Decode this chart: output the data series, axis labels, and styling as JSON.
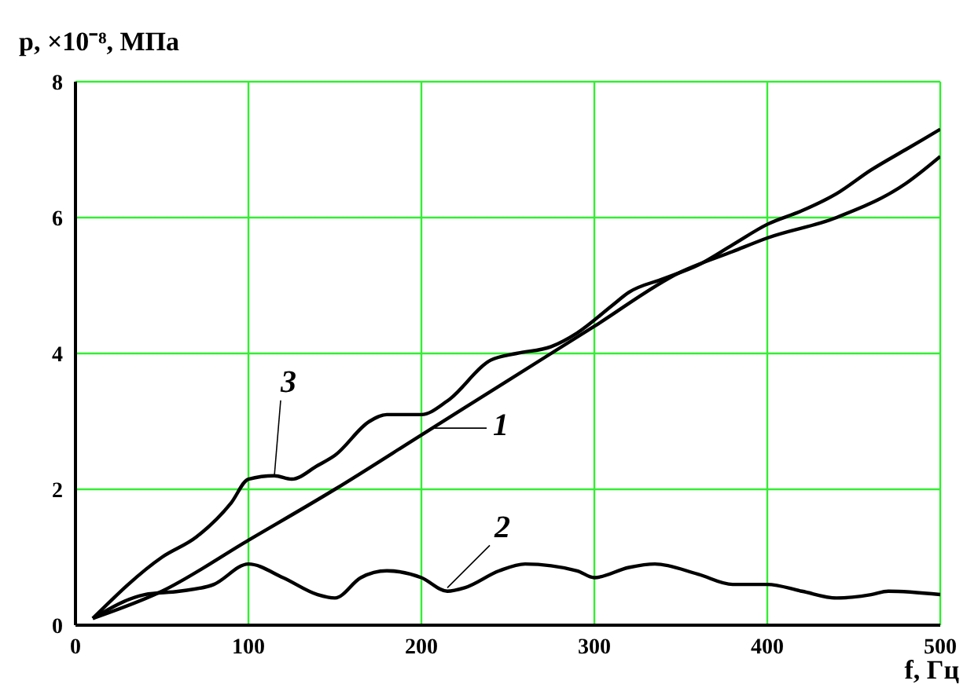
{
  "chart_data": {
    "type": "line",
    "xlabel": "f, Гц",
    "ylabel": "p, ×10⁻⁸, МПа",
    "xlim": [
      0,
      500
    ],
    "ylim": [
      0,
      8
    ],
    "xticks": [
      0,
      100,
      200,
      300,
      400,
      500
    ],
    "yticks": [
      0,
      2,
      4,
      6,
      8
    ],
    "grid": true,
    "legend": false,
    "marker": "none",
    "line_style": "solid",
    "series": [
      {
        "color": "#000000",
        "x": [
          10,
          50,
          100,
          150,
          200,
          250,
          300,
          350,
          380,
          400,
          440,
          480,
          500
        ],
        "values": [
          0.1,
          0.5,
          1.25,
          2.0,
          2.8,
          3.6,
          4.4,
          5.2,
          5.5,
          5.7,
          6.0,
          6.5,
          6.9
        ]
      },
      {
        "color": "#000000",
        "x": [
          10,
          40,
          60,
          80,
          100,
          120,
          140,
          150,
          165,
          180,
          200,
          215,
          225,
          245,
          260,
          290,
          300,
          320,
          335,
          360,
          380,
          400,
          420,
          440,
          460,
          470,
          500
        ],
        "values": [
          0.1,
          0.45,
          0.5,
          0.6,
          0.9,
          0.7,
          0.45,
          0.4,
          0.7,
          0.8,
          0.7,
          0.5,
          0.55,
          0.8,
          0.9,
          0.8,
          0.7,
          0.85,
          0.9,
          0.75,
          0.6,
          0.6,
          0.5,
          0.4,
          0.45,
          0.5,
          0.45
        ]
      },
      {
        "color": "#000000",
        "x": [
          10,
          50,
          70,
          90,
          100,
          115,
          125,
          140,
          150,
          170,
          180,
          200,
          215,
          240,
          255,
          275,
          290,
          310,
          320,
          340,
          360,
          380,
          400,
          420,
          440,
          460,
          480,
          500
        ],
        "values": [
          0.1,
          1.0,
          1.3,
          1.8,
          2.15,
          2.2,
          2.15,
          2.35,
          2.5,
          3.0,
          3.1,
          3.1,
          3.3,
          3.9,
          4.0,
          4.1,
          4.3,
          4.7,
          4.9,
          5.1,
          5.3,
          5.6,
          5.9,
          6.1,
          6.35,
          6.7,
          7.0,
          7.3
        ]
      }
    ],
    "annotations": [
      {
        "text": "1",
        "x": 205,
        "y": 2.9
      },
      {
        "text": "2",
        "x": 215,
        "y": 0.55
      },
      {
        "text": "3",
        "x": 115,
        "y": 2.2
      }
    ]
  }
}
